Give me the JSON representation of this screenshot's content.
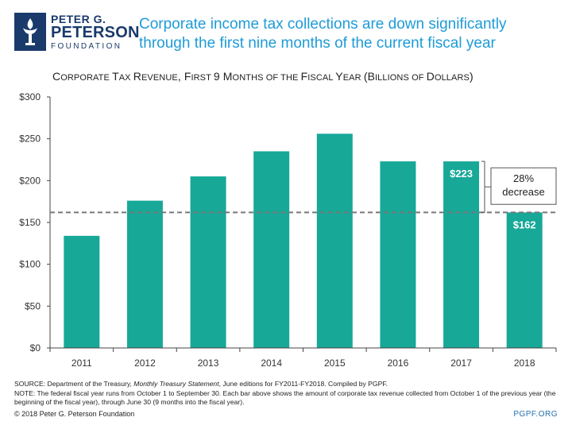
{
  "logo": {
    "line1": "PETER G.",
    "line2": "PETERSON",
    "line3": "FOUNDATION"
  },
  "headline": "Corporate income tax collections are down significantly through the first nine months of the current fiscal year",
  "subtitle_parts": [
    {
      "text": "C",
      "big": true
    },
    {
      "text": "ORPORATE ",
      "big": false
    },
    {
      "text": "T",
      "big": true
    },
    {
      "text": "AX ",
      "big": false
    },
    {
      "text": "R",
      "big": true
    },
    {
      "text": "EVENUE",
      "big": false
    },
    {
      "text": ", F",
      "big": true
    },
    {
      "text": "IRST ",
      "big": false
    },
    {
      "text": "9 M",
      "big": true
    },
    {
      "text": "ONTHS OF THE ",
      "big": false
    },
    {
      "text": "F",
      "big": true
    },
    {
      "text": "ISCAL ",
      "big": false
    },
    {
      "text": "Y",
      "big": true
    },
    {
      "text": "EAR ",
      "big": false
    },
    {
      "text": "(B",
      "big": true
    },
    {
      "text": "ILLIONS OF ",
      "big": false
    },
    {
      "text": "D",
      "big": true
    },
    {
      "text": "OLLARS",
      "big": false
    },
    {
      "text": ")",
      "big": true
    }
  ],
  "chart_data": {
    "type": "bar",
    "categories": [
      "2011",
      "2012",
      "2013",
      "2014",
      "2015",
      "2016",
      "2017",
      "2018"
    ],
    "values": [
      134,
      176,
      205,
      235,
      256,
      223,
      223,
      162
    ],
    "ylim": [
      0,
      300
    ],
    "yticks": [
      0,
      50,
      100,
      150,
      200,
      250,
      300
    ],
    "ytick_labels": [
      "$0",
      "$50",
      "$100",
      "$150",
      "$200",
      "$250",
      "$300"
    ],
    "bar_color": "#17a898",
    "data_labels": [
      {
        "category": "2017",
        "text": "$223"
      },
      {
        "category": "2018",
        "text": "$162"
      }
    ],
    "reference_line": {
      "value": 162,
      "style": "dashed"
    },
    "annotation": {
      "lines": [
        "28%",
        "decrease"
      ]
    },
    "grid": false
  },
  "notes": {
    "source_prefix": "SOURCE: Department of the Treasury, ",
    "source_italic": "Monthly Treasury Statement",
    "source_suffix": ", June editions for FY2011-FY2018. Compiled by PGPF.",
    "note": "NOTE: The federal fiscal year runs from October 1 to September 30. Each bar above shows the amount of corporate tax revenue collected from October 1 of the previous year (the beginning of the fiscal year), through June 30 (9 months into the fiscal year)."
  },
  "copyright": "© 2018 Peter G. Peterson Foundation",
  "site": "PGPF.ORG"
}
